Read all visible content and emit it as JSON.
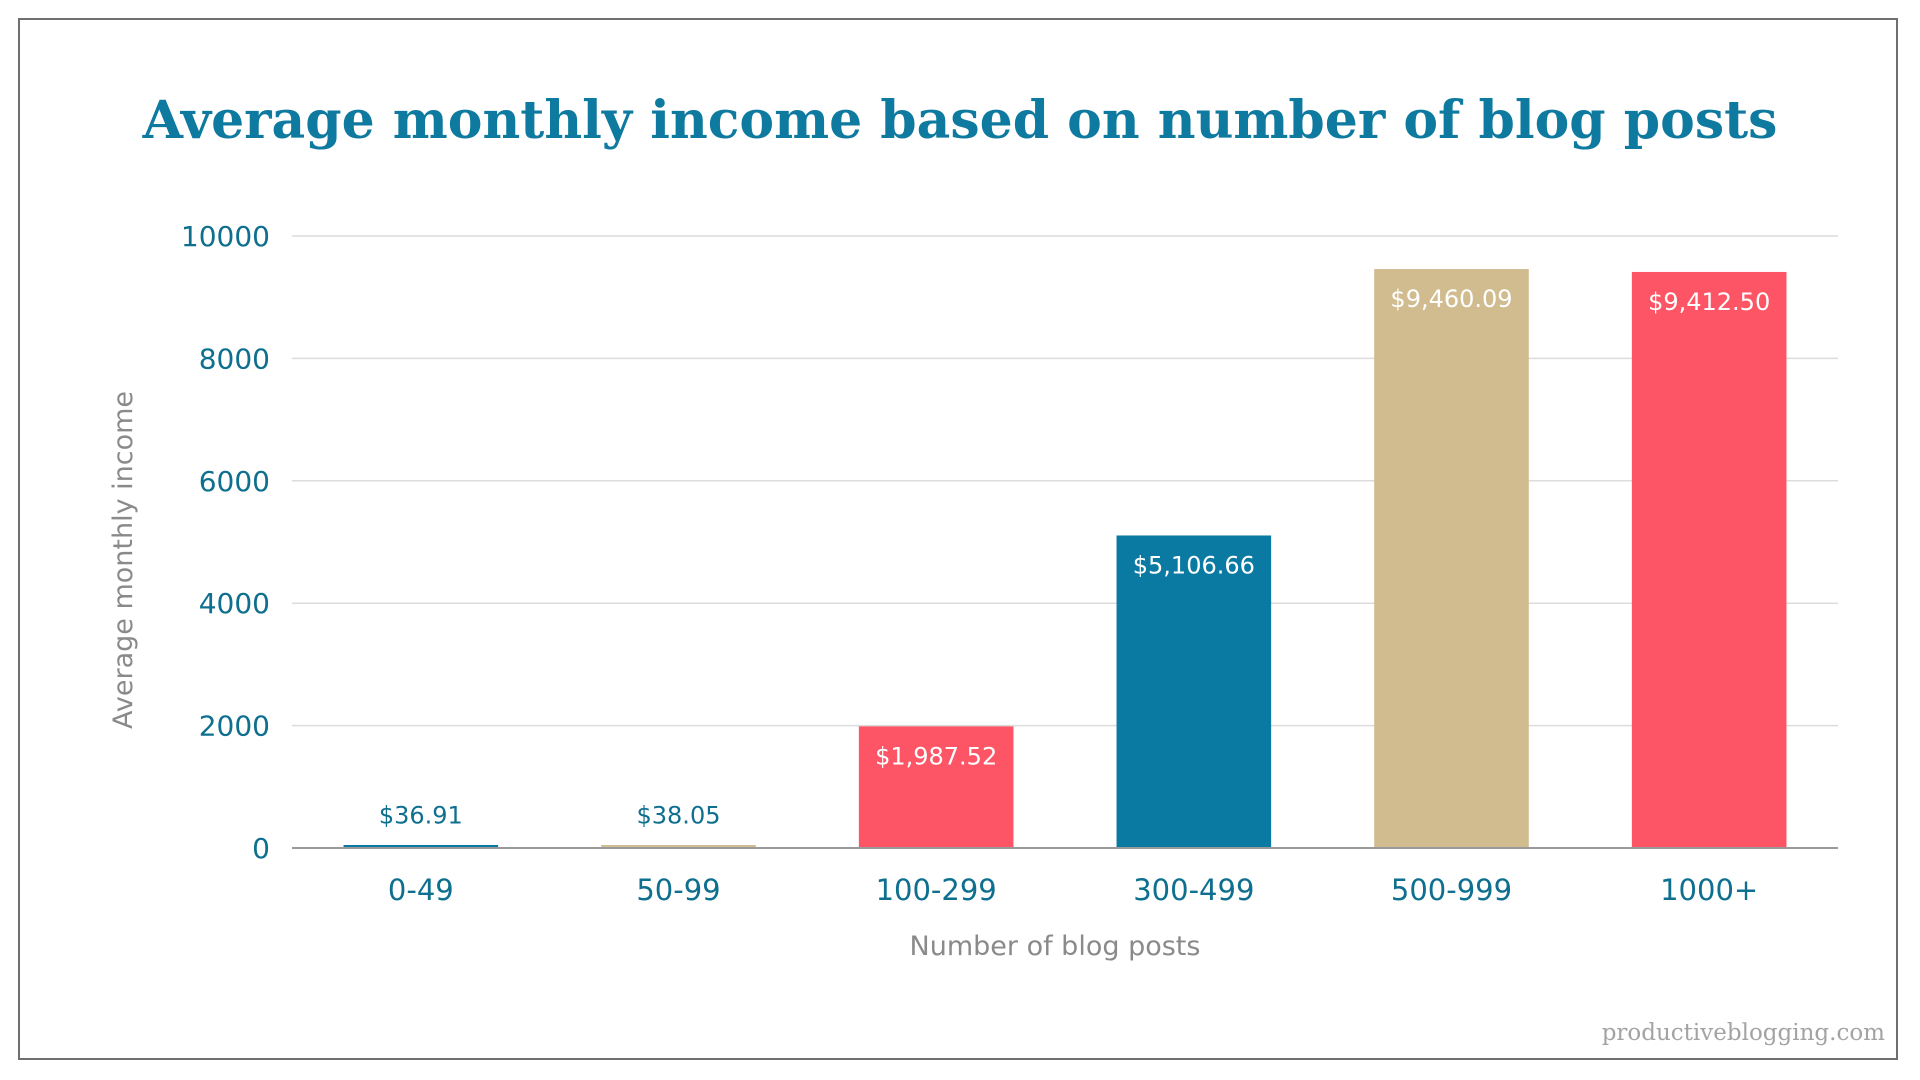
{
  "chart_data": {
    "type": "bar",
    "title": "Average monthly income based on number of blog posts",
    "xlabel": "Number of blog posts",
    "ylabel": "Average monthly income",
    "categories": [
      "0-49",
      "50-99",
      "100-299",
      "300-499",
      "500-999",
      "1000+"
    ],
    "values": [
      36.91,
      38.05,
      1987.52,
      5106.66,
      9460.09,
      9412.5
    ],
    "data_labels": [
      "$36.91",
      "$38.05",
      "$1,987.52",
      "$5,106.66",
      "$9,460.09",
      "$9,412.50"
    ],
    "colors": [
      "#0b7aa3",
      "#d0bc8f",
      "#fd5565",
      "#0b7aa3",
      "#d0bc8f",
      "#fd5565"
    ],
    "ylim": [
      0,
      10000
    ],
    "yticks": [
      "0",
      "2000",
      "4000",
      "6000",
      "8000",
      "10000"
    ],
    "grid": true,
    "legend": "none"
  },
  "footer": {
    "watermark": "productiveblogging.com"
  }
}
